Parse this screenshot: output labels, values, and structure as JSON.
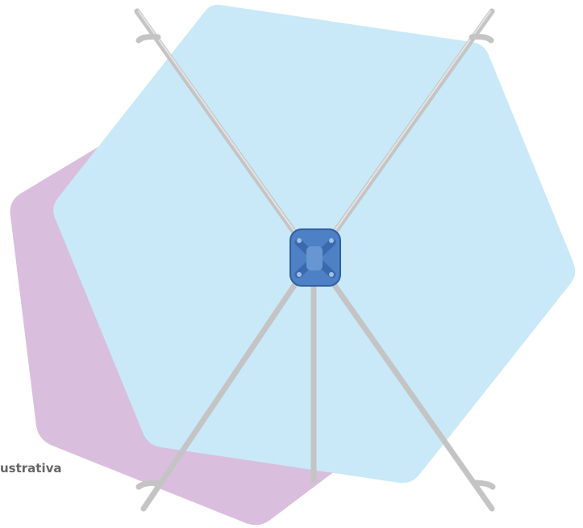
{
  "caption": "ustrativa"
}
